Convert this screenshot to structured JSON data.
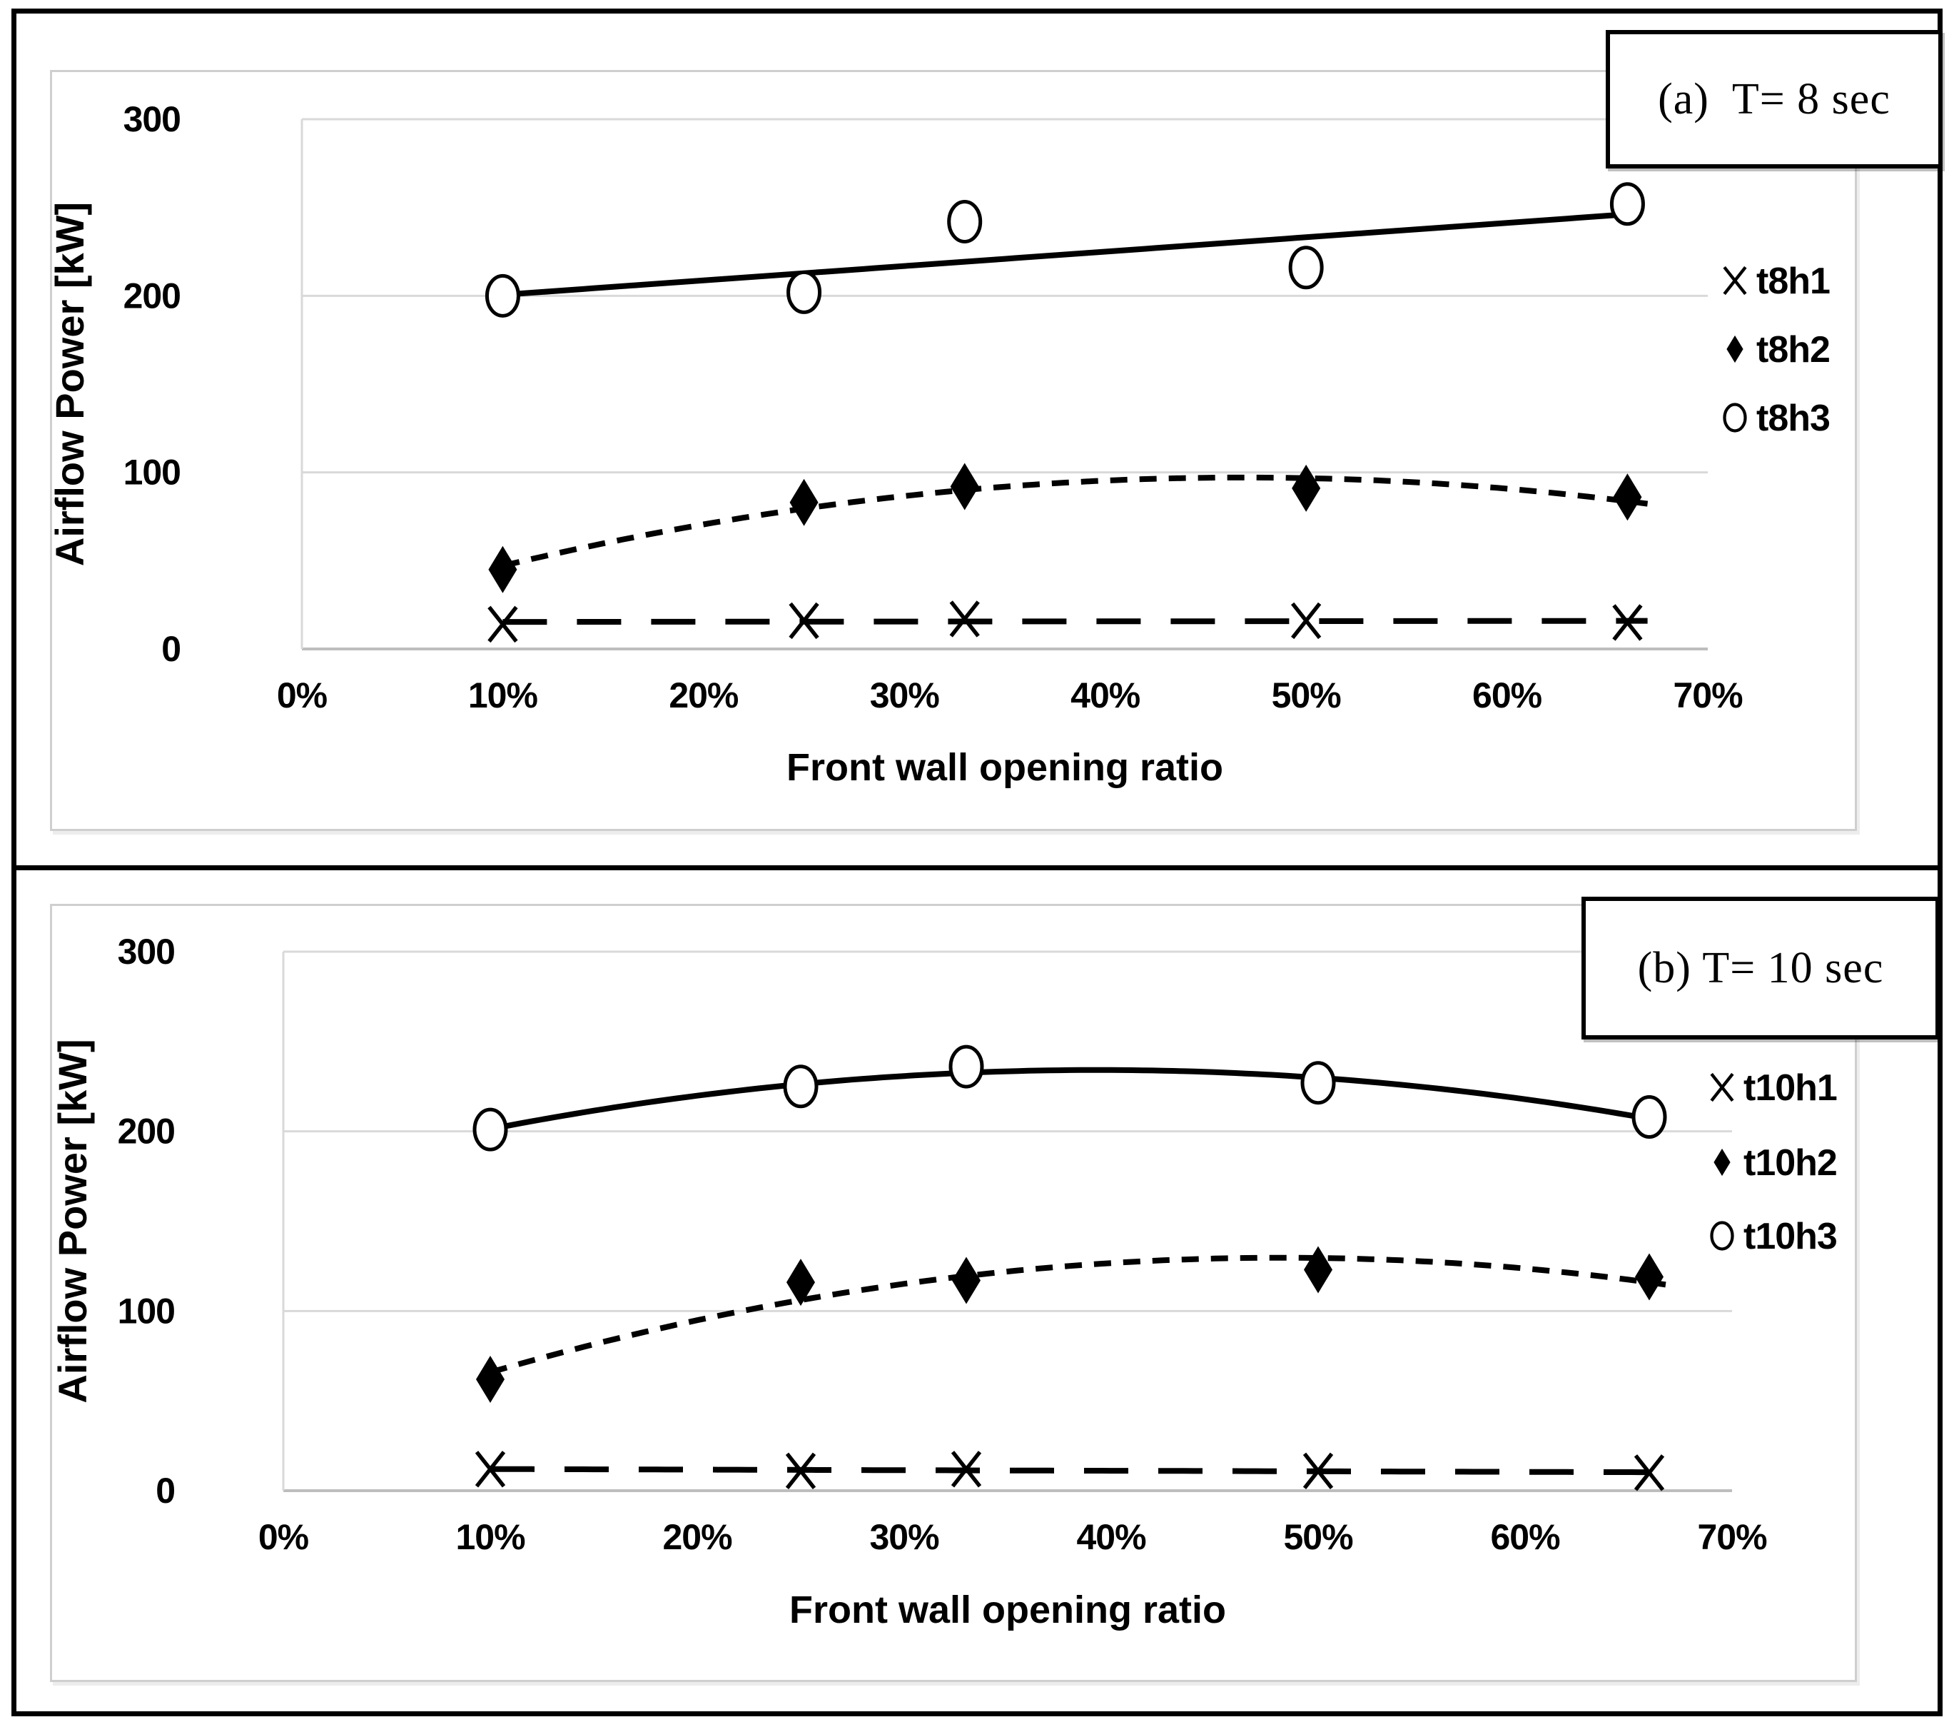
{
  "page": {
    "colors": {
      "ink": "#000000",
      "grid_gray": "#d9d9d9",
      "axis_gray": "#bdbdbd",
      "panel_border_gray": "#cfcfcf",
      "background": "#ffffff"
    }
  },
  "chart_data": [
    {
      "type": "scatter",
      "panel_label": "(a)  T= 8 sec",
      "xlabel": "Front wall opening ratio",
      "ylabel": "Airflow Power [kW]",
      "x": [
        10,
        25,
        33,
        50,
        66
      ],
      "xlim": [
        0,
        70
      ],
      "ylim": [
        0,
        300
      ],
      "yticks": [
        0,
        100,
        200,
        300
      ],
      "ytick_labels": [
        "0",
        "100",
        "200",
        "300"
      ],
      "xticks": [
        0,
        10,
        20,
        30,
        40,
        50,
        60,
        70
      ],
      "xtick_labels": [
        "0%",
        "10%",
        "20%",
        "30%",
        "40%",
        "50%",
        "60%",
        "70%"
      ],
      "grid": "horizontal",
      "legend_position": "right",
      "series": [
        {
          "name": "t8h1",
          "marker": "x",
          "line_style": "long-dash",
          "trend": "linear",
          "values": [
            14,
            16,
            17,
            16,
            15
          ]
        },
        {
          "name": "t8h2",
          "marker": "diamond",
          "line_style": "short-dash",
          "trend": "poly2",
          "values": [
            45,
            83,
            92,
            91,
            86
          ]
        },
        {
          "name": "t8h3",
          "marker": "circle",
          "line_style": "solid",
          "trend": "linear",
          "values": [
            200,
            202,
            242,
            216,
            252
          ]
        }
      ]
    },
    {
      "type": "scatter",
      "panel_label": "(b) T= 10 sec",
      "xlabel": "Front wall opening ratio",
      "ylabel": "Airflow Power [kW]",
      "x": [
        10,
        25,
        33,
        50,
        66
      ],
      "xlim": [
        0,
        70
      ],
      "ylim": [
        0,
        300
      ],
      "yticks": [
        0,
        100,
        200,
        300
      ],
      "ytick_labels": [
        "0",
        "100",
        "200",
        "300"
      ],
      "xticks": [
        0,
        10,
        20,
        30,
        40,
        50,
        60,
        70
      ],
      "xtick_labels": [
        "0%",
        "10%",
        "20%",
        "30%",
        "40%",
        "50%",
        "60%",
        "70%"
      ],
      "grid": "horizontal",
      "legend_position": "right",
      "series": [
        {
          "name": "t10h1",
          "marker": "x",
          "line_style": "long-dash",
          "trend": "linear",
          "values": [
            12,
            11,
            12,
            11,
            10
          ]
        },
        {
          "name": "t10h2",
          "marker": "diamond",
          "line_style": "short-dash",
          "trend": "poly2",
          "values": [
            62,
            116,
            117,
            123,
            119
          ]
        },
        {
          "name": "t10h3",
          "marker": "circle",
          "line_style": "solid",
          "trend": "poly2",
          "values": [
            201,
            225,
            236,
            227,
            208
          ]
        }
      ]
    }
  ]
}
